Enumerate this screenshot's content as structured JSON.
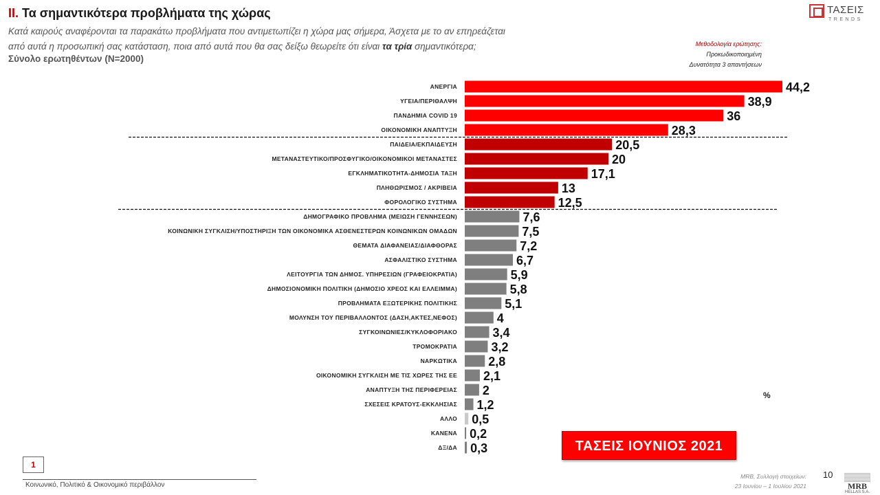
{
  "header": {
    "section_number": "II.",
    "title": "Τα σημαντικότερα προβλήματα της χώρας",
    "question_line1": "Κατά καιρούς αναφέρονται τα παρακάτω προβλήματα που αντιμετωπίζει η χώρα μας σήμερα, Άσχετα με το αν επηρεάζεται",
    "question_line2_pre": "από αυτά η προσωπική σας κατάσταση, ποια από αυτά που θα σας δείξω θεωρείτε ότι είναι ",
    "question_line2_bold": "τα τρία",
    "question_line2_post": " σημαντικότερα;",
    "total": "Σύνολο ερωτηθέντων (N=2000)"
  },
  "methodology": {
    "label": "Μεθοδολογία ερώτησης:",
    "line1": "Προκωδικοποιημένη",
    "line2": "Δυνατότητα 3 απαντήσεων"
  },
  "logo_top": {
    "name": "ΤΑΣΕΙΣ",
    "sub": "TRENDS"
  },
  "badge": "ΤΑΣΕΙΣ ΙΟΥΝΙΟΣ 2021",
  "unit": "%",
  "footer": {
    "page_box": "1",
    "label": "Κοινωνικό, Πολιτικό & Οικονομικό περιβάλλον",
    "collection_label": "MRB, Συλλογή στοιχείων:",
    "collection_dates": "23 Ιουνίου –  1 Ιουλίου 2021",
    "page_number": "10"
  },
  "logo_bottom": {
    "name": "MRB",
    "sub": "HELLAS S.A."
  },
  "colors": {
    "top_tier": "#ff0000",
    "mid_tier": "#c00000",
    "low_tier": "#7f7f7f",
    "other": "#c9c9c9"
  },
  "chart_data": {
    "type": "bar",
    "orientation": "horizontal",
    "categories": [
      "ΑΝΕΡΓΙΑ",
      "ΥΓΕΙΑ/ΠΕΡΙΘΑΛΨΗ",
      "ΠΑΝΔΗΜΙΑ COVID 19",
      "ΟΙΚΟΝΟΜΙΚΗ ΑΝΑΠΤΥΞΗ",
      "ΠΑΙΔΕΙΑ/ΕΚΠΑΙΔΕΥΣΗ",
      "ΜΕΤΑΝΑΣΤΕΥΤΙΚΟ/ΠΡΟΣΦΥΓΙΚΟ/ΟΙΚΟΝΟΜΙΚΟΙ ΜΕΤΑΝΑΣΤΕΣ",
      "ΕΓΚΛΗΜΑΤΙΚΟΤΗΤΑ-ΔΗΜΟΣΙΑ ΤΑΞΗ",
      "ΠΛΗΘΩΡΙΣΜΟΣ / ΑΚΡΙΒΕΙΑ",
      "ΦΟΡΟΛΟΓΙΚΟ ΣΥΣΤΗΜΑ",
      "ΔΗΜΟΓΡΑΦΙΚΟ ΠΡΟΒΛΗΜΑ (ΜΕΙΩΣΗ ΓΕΝΝΗΣΕΩΝ)",
      "ΚΟΙΝΩΝΙΚΗ ΣΥΓΚΛΙΣΗ/ΥΠΟΣΤΗΡΙΞΗ ΤΩΝ ΟΙΚΟΝΟΜΙΚΑ ΑΣΘΕΝΕΣΤΕΡΩΝ ΚΟΙΝΩΝΙΚΩΝ ΟΜΑΔΩΝ",
      "ΘΕΜΑΤΑ ΔΙΑΦΑΝΕΙΑΣ/ΔΙΑΦΘΟΡΑΣ",
      "ΑΣΦΑΛΙΣΤΙΚΟ ΣΥΣΤΗΜΑ",
      "ΛΕΙΤΟΥΡΓΙΑ ΤΩΝ ΔΗΜΟΣ. ΥΠΗΡΕΣΙΩΝ (ΓΡΑΦΕΙΟΚΡΑΤΙΑ)",
      "ΔΗΜΟΣΙΟΝΟΜΙΚΗ ΠΟΛΙΤΙΚΗ (ΔΗΜΟΣΙΟ ΧΡΕΟΣ ΚΑΙ ΕΛΛΕΙΜΜΑ)",
      "ΠΡΟΒΛΗΜΑΤΑ ΕΞΩΤΕΡΙΚΗΣ ΠΟΛΙΤΙΚΗΣ",
      "ΜΟΛΥΝΣΗ ΤΟΥ ΠΕΡΙΒΑΛΛΟΝΤΟΣ (ΔΑΣΗ,ΑΚΤΕΣ,ΝΕΦΟΣ)",
      "ΣΥΓΚΟΙΝΩΝΙΕΣ/ΚΥΚΛΟΦΟΡΙΑΚΟ",
      "ΤΡΟΜΟΚΡΑΤΙΑ",
      "ΝΑΡΚΩΤΙΚΑ",
      "ΟΙΚΟΝΟΜΙΚΗ ΣΥΓΚΛΙΣΗ ΜΕ ΤΙΣ ΧΩΡΕΣ ΤΗΣ ΕΕ",
      "ΑΝΑΠΤΥΞΗ ΤΗΣ ΠΕΡΙΦΕΡΕΙΑΣ",
      "ΣΧΕΣΕΙΣ ΚΡΑΤΟΥΣ-ΕΚΚΛΗΣΙΑΣ",
      "ΑΛΛΟ",
      "ΚΑΝΕΝΑ",
      "ΔΞ/ΔΑ"
    ],
    "values": [
      44.2,
      38.9,
      36,
      28.3,
      20.5,
      20,
      17.1,
      13,
      12.5,
      7.6,
      7.5,
      7.2,
      6.7,
      5.9,
      5.8,
      5.1,
      4,
      3.4,
      3.2,
      2.8,
      2.1,
      2,
      1.2,
      0.5,
      0.2,
      0.3
    ],
    "value_labels": [
      "44,2",
      "38,9",
      "36",
      "28,3",
      "20,5",
      "20",
      "17,1",
      "13",
      "12,5",
      "7,6",
      "7,5",
      "7,2",
      "6,7",
      "5,9",
      "5,8",
      "5,1",
      "4",
      "3,4",
      "3,2",
      "2,8",
      "2,1",
      "2",
      "1,2",
      "0,5",
      "0,2",
      "0,3"
    ],
    "tiers": [
      "top",
      "top",
      "top",
      "top",
      "mid",
      "mid",
      "mid",
      "mid",
      "mid",
      "low",
      "low",
      "low",
      "low",
      "low",
      "low",
      "low",
      "low",
      "low",
      "low",
      "low",
      "low",
      "low",
      "low",
      "other",
      "low",
      "low"
    ],
    "separators_after_index": [
      3,
      8
    ],
    "xlim": [
      0,
      44.2
    ],
    "grid": false,
    "axes_visible": false
  }
}
